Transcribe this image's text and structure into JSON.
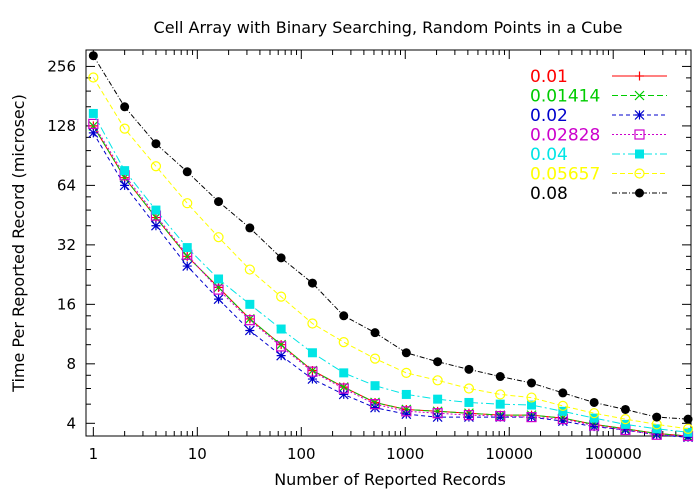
{
  "chart_data": {
    "type": "line",
    "title": "Cell Array with Binary Searching, Random Points in a Cube",
    "xlabel": "Number of Reported Records",
    "ylabel": "Time Per Reported Record (microsec)",
    "x_scale": "log",
    "y_scale": "log",
    "xlim": [
      0.85,
      560000
    ],
    "ylim": [
      3.45,
      310
    ],
    "x_ticks": [
      {
        "value": 1,
        "label": "1"
      },
      {
        "value": 10,
        "label": "10"
      },
      {
        "value": 100,
        "label": "100"
      },
      {
        "value": 1000,
        "label": "1000"
      },
      {
        "value": 10000,
        "label": "10000"
      },
      {
        "value": 100000,
        "label": "100000"
      }
    ],
    "y_ticks": [
      {
        "value": 4,
        "label": "4"
      },
      {
        "value": 8,
        "label": "8"
      },
      {
        "value": 16,
        "label": "16"
      },
      {
        "value": 32,
        "label": "32"
      },
      {
        "value": 64,
        "label": "64"
      },
      {
        "value": 128,
        "label": "128"
      },
      {
        "value": 256,
        "label": "256"
      }
    ],
    "grid": false,
    "legend_position": "top-right",
    "x": [
      1,
      2,
      4,
      8,
      16,
      32,
      64,
      128,
      256,
      512,
      1024,
      2048,
      4096,
      8192,
      16384,
      32768,
      65536,
      131072,
      262144,
      524288
    ],
    "series": [
      {
        "name": "0.01",
        "color": "#ff0000",
        "marker": "plus",
        "dash": "",
        "values": [
          128,
          70,
          44,
          28,
          19.5,
          13.5,
          10,
          7.4,
          6.1,
          5.1,
          4.7,
          4.6,
          4.5,
          4.4,
          4.4,
          4.25,
          3.95,
          3.75,
          3.55,
          3.45
        ]
      },
      {
        "name": "0.01414",
        "color": "#00cc00",
        "marker": "x",
        "dash": "6,3",
        "values": [
          128,
          70,
          44,
          28,
          19.5,
          13.5,
          10,
          7.4,
          6.1,
          5.1,
          4.7,
          4.6,
          4.5,
          4.4,
          4.4,
          4.25,
          3.95,
          3.75,
          3.55,
          3.45
        ]
      },
      {
        "name": "0.02",
        "color": "#0000cc",
        "marker": "star",
        "dash": "4,3",
        "values": [
          118,
          64,
          40,
          25,
          17,
          11.8,
          8.8,
          6.7,
          5.6,
          4.8,
          4.45,
          4.3,
          4.3,
          4.3,
          4.3,
          4.1,
          3.85,
          3.7,
          3.5,
          3.4
        ]
      },
      {
        "name": "0.02828",
        "color": "#cc00cc",
        "marker": "square",
        "dash": "2,2",
        "values": [
          131,
          72,
          45,
          28.5,
          19,
          13.3,
          9.8,
          7.3,
          6.0,
          5.0,
          4.6,
          4.5,
          4.4,
          4.35,
          4.3,
          4.2,
          3.9,
          3.7,
          3.5,
          3.45
        ]
      },
      {
        "name": "0.04",
        "color": "#00e5e5",
        "marker": "filled-square",
        "dash": "8,3,2,3",
        "values": [
          148,
          76,
          48,
          31,
          21.5,
          16,
          12,
          9.1,
          7.2,
          6.2,
          5.6,
          5.3,
          5.1,
          5.0,
          4.95,
          4.6,
          4.25,
          3.95,
          3.75,
          3.6
        ]
      },
      {
        "name": "0.05657",
        "color": "#ffff00",
        "marker": "circle",
        "dash": "5,3",
        "values": [
          225,
          124,
          80,
          52,
          35,
          24,
          17.5,
          12.8,
          10.3,
          8.5,
          7.2,
          6.6,
          6.0,
          5.6,
          5.4,
          4.9,
          4.5,
          4.2,
          3.95,
          3.75
        ]
      },
      {
        "name": "0.08",
        "color": "#000000",
        "marker": "filled-circle",
        "dash": "5,2,1,2",
        "values": [
          290,
          160,
          104,
          75,
          53,
          39,
          27.5,
          20.5,
          14,
          11.5,
          9.1,
          8.2,
          7.5,
          6.9,
          6.4,
          5.7,
          5.1,
          4.7,
          4.3,
          4.2
        ]
      }
    ]
  }
}
